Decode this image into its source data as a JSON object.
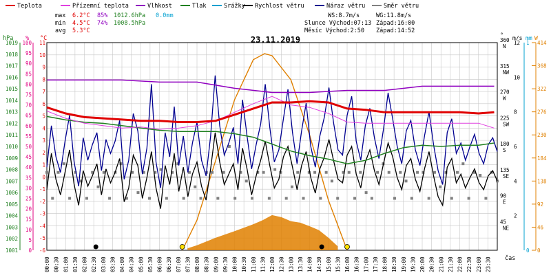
{
  "legend": [
    {
      "label": "Teplota",
      "color": "#e00000"
    },
    {
      "label": "Přízemní teplota",
      "color": "#e040e0"
    },
    {
      "label": "Vlhkost",
      "color": "#9000c0"
    },
    {
      "label": "Tlak",
      "color": "#208020"
    },
    {
      "label": "Srážky",
      "color": "#00a0d0"
    },
    {
      "label": "Rychlost větru",
      "color": "#000000"
    },
    {
      "label": "Náraz větru",
      "color": "#000090"
    },
    {
      "label": "Směr větru",
      "color": "#808080"
    }
  ],
  "stats": {
    "max_label": "max",
    "min_label": "min",
    "avg_label": "avg",
    "max_temp": "6.2°C",
    "max_hum": "85%",
    "max_press": "1012.6hPa",
    "max_rain": "0.0mm",
    "min_temp": "4.5°C",
    "min_hum": "74%",
    "min_press": "1008.5hPa",
    "avg_temp": "5.3°C",
    "ws": "WS:8.7m/s",
    "wg": "WG:11.8m/s",
    "slunce": "Slunce Východ:07:13",
    "slunce_zapad": "Západ:16:00",
    "mesic": "Měsíc  Východ:2:50",
    "mesic_zapad": "Západ:14:52"
  },
  "date": "23.11.2019",
  "axis_units": {
    "hpa": "hPa",
    "pct": "%",
    "degc": "°C",
    "deg": "°",
    "ms": "m/s",
    "mm": "mm",
    "w": "W",
    "cas": "čas"
  },
  "colors": {
    "grid": "#c8c8c8",
    "frame": "#000000",
    "hpa": "#208020",
    "pct": "#e00080",
    "degc": "#e00000",
    "ms": "#000000",
    "mm": "#00a0d0",
    "w": "#e08000",
    "dir": "#000000"
  },
  "chart_data": {
    "type": "line",
    "x_start": "00:00",
    "x_end": "24:00",
    "x_tick_step_minutes": 30,
    "x_tick_labels": [
      "00:00",
      "00:30",
      "01:00",
      "01:30",
      "02:00",
      "02:30",
      "03:00",
      "03:30",
      "04:00",
      "04:30",
      "05:00",
      "05:30",
      "06:00",
      "06:30",
      "07:00",
      "07:30",
      "08:00",
      "08:30",
      "09:00",
      "09:30",
      "10:00",
      "10:30",
      "11:00",
      "11:30",
      "12:00",
      "12:30",
      "13:00",
      "13:30",
      "14:00",
      "14:30",
      "15:00",
      "15:30",
      "16:00",
      "16:30",
      "17:00",
      "17:30",
      "18:00",
      "18:30",
      "19:00",
      "19:30",
      "20:00",
      "20:30",
      "21:00",
      "21:30",
      "22:00",
      "22:30",
      "23:00",
      "23:30"
    ],
    "axes": {
      "pressure_hpa": {
        "min": 1001,
        "max": 1019,
        "ticks": [
          1001,
          1002,
          1003,
          1004,
          1005,
          1006,
          1007,
          1008,
          1009,
          1010,
          1011,
          1012,
          1013,
          1014,
          1015,
          1016,
          1017,
          1018,
          1019
        ]
      },
      "humidity_pct": {
        "min": 0,
        "max": 100,
        "ticks": [
          0,
          5,
          10,
          15,
          20,
          25,
          30,
          35,
          40,
          45,
          50,
          55,
          60,
          65,
          70,
          75,
          80,
          85,
          90,
          95,
          100
        ]
      },
      "temperature_c": {
        "min": -6,
        "max": 11,
        "ticks": [
          -6,
          -5,
          -4,
          -3,
          -2,
          -1,
          0,
          1,
          2,
          3,
          4,
          5,
          6,
          7,
          8,
          9,
          10,
          11
        ]
      },
      "wind_dir_deg": {
        "min": 0,
        "max": 360,
        "ticks": [
          0,
          45,
          90,
          135,
          180,
          225,
          270,
          315,
          360
        ],
        "labels": [
          "",
          "NE",
          "E",
          "SE",
          "S",
          "SW",
          "W",
          "NW",
          "N"
        ]
      },
      "wind_ms": {
        "min": 0,
        "max": 12,
        "ticks": [
          0,
          2,
          4,
          6,
          8,
          10,
          12
        ]
      },
      "rain_mm": {
        "min": 0,
        "max": 1,
        "ticks": [
          0,
          1
        ]
      },
      "solar_w": {
        "min": 0,
        "max": 414,
        "ticks": [
          0,
          46,
          92,
          138,
          184,
          230,
          276,
          322,
          368,
          414
        ]
      }
    },
    "series": [
      {
        "name": "Teplota",
        "unit": "°C",
        "x": [
          "00:00",
          "01:00",
          "02:00",
          "03:00",
          "04:00",
          "05:00",
          "06:00",
          "07:00",
          "08:00",
          "09:00",
          "10:00",
          "11:00",
          "12:00",
          "13:00",
          "14:00",
          "15:00",
          "16:00",
          "17:00",
          "18:00",
          "19:00",
          "20:00",
          "21:00",
          "22:00",
          "23:00",
          "23:50"
        ],
        "values": [
          5.7,
          5.2,
          4.9,
          4.8,
          4.7,
          4.6,
          4.6,
          4.5,
          4.5,
          4.6,
          5.1,
          5.6,
          6.1,
          6.1,
          6.2,
          6.1,
          5.6,
          5.5,
          5.3,
          5.3,
          5.3,
          5.3,
          5.3,
          5.2,
          5.3
        ]
      },
      {
        "name": "Přízemní teplota",
        "unit": "°C",
        "x": [
          "00:00",
          "01:00",
          "02:00",
          "03:00",
          "04:00",
          "05:00",
          "06:00",
          "07:00",
          "08:00",
          "09:00",
          "10:00",
          "11:00",
          "12:00",
          "13:00",
          "14:00",
          "15:00",
          "16:00",
          "17:00",
          "18:00",
          "19:00",
          "20:00",
          "21:00",
          "22:00",
          "23:00",
          "23:50"
        ],
        "values": [
          5.4,
          4.8,
          4.4,
          4.2,
          4.0,
          4.1,
          3.9,
          4.0,
          4.2,
          4.6,
          5.3,
          6.0,
          6.6,
          5.9,
          5.7,
          5.2,
          4.5,
          4.4,
          4.4,
          4.4,
          4.4,
          4.4,
          4.4,
          4.4,
          4.0
        ]
      },
      {
        "name": "Vlhkost",
        "unit": "%",
        "x": [
          "00:00",
          "02:00",
          "04:00",
          "06:00",
          "08:00",
          "10:00",
          "12:00",
          "14:00",
          "16:00",
          "18:00",
          "20:00",
          "22:00",
          "23:50"
        ],
        "values": [
          82,
          82,
          82,
          81,
          81,
          78,
          76,
          76,
          77,
          77,
          79,
          79,
          79
        ]
      },
      {
        "name": "Tlak",
        "unit": "hPa",
        "x": [
          "00:00",
          "01:00",
          "02:00",
          "03:00",
          "04:00",
          "05:00",
          "06:00",
          "07:00",
          "08:00",
          "09:00",
          "10:00",
          "11:00",
          "12:00",
          "13:00",
          "14:00",
          "15:00",
          "16:00",
          "17:00",
          "18:00",
          "19:00",
          "20:00",
          "21:00",
          "22:00",
          "23:00",
          "23:50"
        ],
        "values": [
          1012.6,
          1012.3,
          1012.1,
          1012.0,
          1011.8,
          1011.6,
          1011.4,
          1011.3,
          1011.3,
          1011.3,
          1011.1,
          1010.8,
          1010.2,
          1009.6,
          1009.2,
          1008.9,
          1008.5,
          1008.8,
          1009.4,
          1009.9,
          1010.1,
          1010.0,
          1010.1,
          1010.1,
          1010.3
        ]
      },
      {
        "name": "Rychlost větru",
        "unit": "m/s",
        "values": [
          3.5,
          5.6,
          4.1,
          3.2,
          4.5,
          5.8,
          3.8,
          2.6,
          4.6,
          3.7,
          4.3,
          5.0,
          3.2,
          4.7,
          3.9,
          4.5,
          5.3,
          2.8,
          3.6,
          5.5,
          4.9,
          3.0,
          4.2,
          5.7,
          3.6,
          2.4,
          4.9,
          3.8,
          5.6,
          3.4,
          4.8,
          3.1,
          4.4,
          5.1,
          3.7,
          2.9,
          4.7,
          6.8,
          5.1,
          3.8,
          4.4,
          5.0,
          3.5,
          5.9,
          4.7,
          3.2,
          4.3,
          5.2,
          6.3,
          4.9,
          3.6,
          4.1,
          5.4,
          6.0,
          4.8,
          3.5,
          4.9,
          5.7,
          4.2,
          3.3,
          4.7,
          5.4,
          6.4,
          5.2,
          4.1,
          3.9,
          5.5,
          6.0,
          4.4,
          3.6,
          5.1,
          5.8,
          4.6,
          3.8,
          5.0,
          6.2,
          5.4,
          4.2,
          3.5,
          4.9,
          5.3,
          4.1,
          3.4,
          4.7,
          5.7,
          4.3,
          3.1,
          2.6,
          4.8,
          5.3,
          3.9,
          4.4,
          3.6,
          4.2,
          4.7,
          3.9,
          3.5,
          4.3,
          4.6,
          4.0
        ]
      },
      {
        "name": "Náraz větru",
        "unit": "m/s",
        "values": [
          4.8,
          7.2,
          5.4,
          4.5,
          6.3,
          7.8,
          5.1,
          3.7,
          6.5,
          5.2,
          6.1,
          6.8,
          4.6,
          6.4,
          5.6,
          6.3,
          7.5,
          4.1,
          5.2,
          7.9,
          6.9,
          4.4,
          5.9,
          9.6,
          5.1,
          3.6,
          6.8,
          5.4,
          8.3,
          4.9,
          6.6,
          4.5,
          6.2,
          7.4,
          5.2,
          4.3,
          6.6,
          10.1,
          7.2,
          5.5,
          6.2,
          7.1,
          5.0,
          8.7,
          6.6,
          4.7,
          6.1,
          7.3,
          9.6,
          7.1,
          5.1,
          5.8,
          7.6,
          9.3,
          6.8,
          5.0,
          6.9,
          8.5,
          6.0,
          4.8,
          6.6,
          7.7,
          9.4,
          7.4,
          5.8,
          5.5,
          7.8,
          8.9,
          6.3,
          5.2,
          7.2,
          8.2,
          6.5,
          5.3,
          7.0,
          9.1,
          7.6,
          6.0,
          5.0,
          6.9,
          7.5,
          5.8,
          4.9,
          6.6,
          8.0,
          6.1,
          4.6,
          3.8,
          6.8,
          7.6,
          5.6,
          6.2,
          5.2,
          6.0,
          6.7,
          5.6,
          5.0,
          6.1,
          6.5,
          5.7
        ]
      },
      {
        "name": "Směr větru",
        "unit": "°",
        "values": [
          135,
          90,
          135,
          150,
          90,
          135,
          120,
          90,
          135,
          110,
          135,
          90,
          135,
          150,
          90,
          135,
          100,
          135,
          90,
          135,
          140,
          90,
          135,
          150,
          90,
          135,
          110,
          90,
          135,
          135,
          90,
          135,
          180,
          90,
          135,
          120,
          90,
          135,
          135,
          90,
          140,
          135,
          90,
          110,
          135,
          90,
          135,
          135,
          90,
          135,
          120,
          90,
          135,
          135,
          90,
          135,
          100,
          90,
          135,
          150,
          135,
          90,
          135,
          120,
          90,
          135,
          135,
          90,
          135,
          110,
          135,
          90,
          135,
          150,
          90,
          135,
          130,
          90,
          135,
          120
        ]
      },
      {
        "name": "Slunce",
        "unit": "W",
        "x": [
          "07:13",
          "08:00",
          "09:00",
          "10:00",
          "11:00",
          "11:36",
          "12:00",
          "13:00",
          "14:00",
          "15:00",
          "16:00"
        ],
        "values": [
          0,
          60,
          180,
          300,
          380,
          392,
          388,
          340,
          230,
          100,
          0
        ]
      },
      {
        "name": "Měřené záření",
        "unit": "W",
        "x": [
          "07:30",
          "08:00",
          "09:00",
          "10:00",
          "10:30",
          "11:00",
          "11:30",
          "12:00",
          "12:30",
          "13:00",
          "13:30",
          "14:00",
          "14:30",
          "15:00",
          "15:30"
        ],
        "values": [
          4,
          10,
          25,
          38,
          45,
          52,
          60,
          70,
          66,
          58,
          55,
          48,
          40,
          25,
          8
        ]
      }
    ],
    "annotations": {
      "sunrise": "07:13",
      "sunset": "16:00",
      "moonrise": "02:50",
      "moonset": "14:52"
    }
  }
}
